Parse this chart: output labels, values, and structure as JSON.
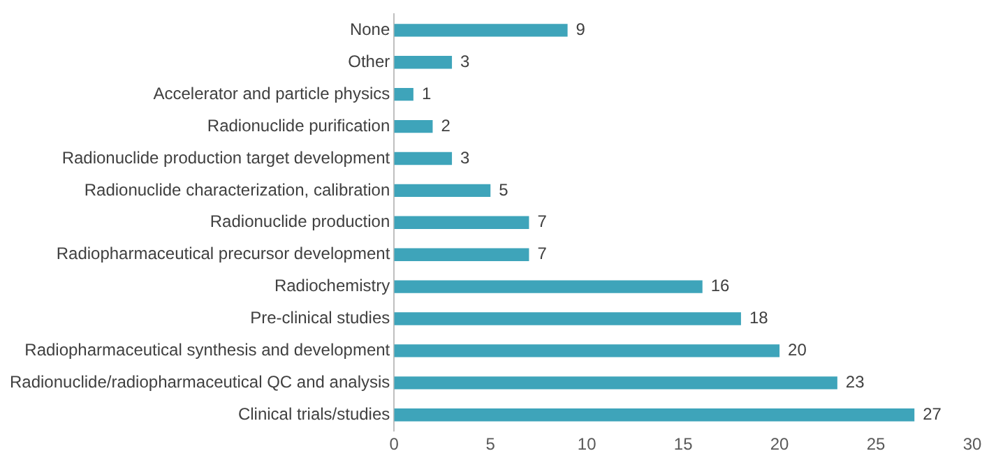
{
  "chart_data": {
    "type": "bar",
    "orientation": "horizontal",
    "categories": [
      "None",
      "Other",
      "Accelerator and particle physics",
      "Radionuclide purification",
      "Radionuclide production target development",
      "Radionuclide characterization, calibration",
      "Radionuclide production",
      "Radiopharmaceutical precursor development",
      "Radiochemistry",
      "Pre-clinical studies",
      "Radiopharmaceutical synthesis and development",
      "Radionuclide/radiopharmaceutical QC and analysis",
      "Clinical trials/studies"
    ],
    "values": [
      9,
      3,
      1,
      2,
      3,
      5,
      7,
      7,
      16,
      18,
      20,
      23,
      27
    ],
    "color": "#3ea4ba",
    "xlim": [
      0,
      30
    ],
    "xticks": [
      0,
      5,
      10,
      15,
      20,
      25,
      30
    ],
    "data_labels": true,
    "grid": false,
    "legend": false
  }
}
